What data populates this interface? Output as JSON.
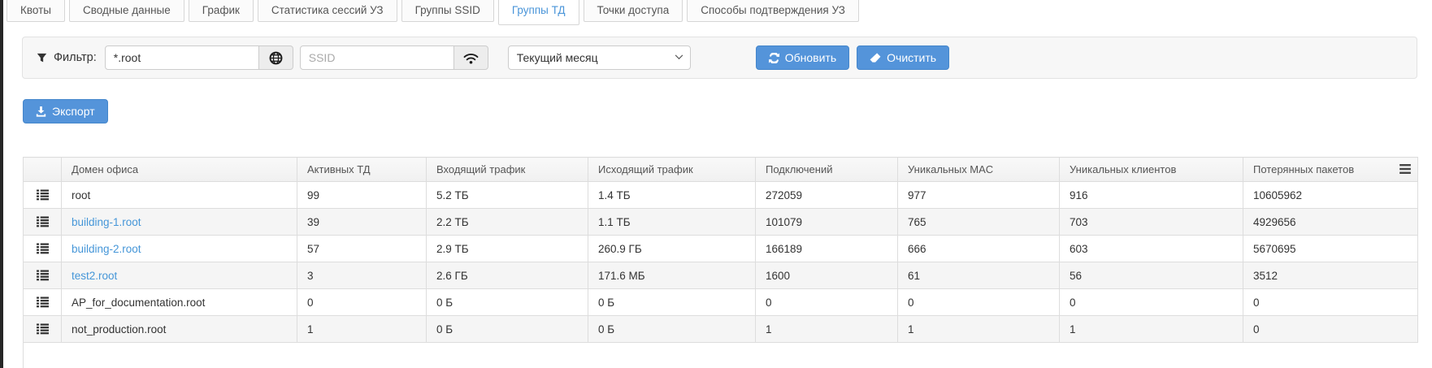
{
  "tabs": [
    {
      "label": "Квоты",
      "active": false
    },
    {
      "label": "Сводные данные",
      "active": false
    },
    {
      "label": "График",
      "active": false
    },
    {
      "label": "Статистика сессий УЗ",
      "active": false
    },
    {
      "label": "Группы SSID",
      "active": false
    },
    {
      "label": "Группы ТД",
      "active": true
    },
    {
      "label": "Точки доступа",
      "active": false
    },
    {
      "label": "Способы подтверждения УЗ",
      "active": false
    }
  ],
  "filter": {
    "label": "Фильтр:",
    "domain_value": "*.root",
    "ssid_placeholder": "SSID",
    "period_value": "Текущий месяц",
    "refresh_label": "Обновить",
    "clear_label": "Очистить"
  },
  "export_label": "Экспорт",
  "table": {
    "columns": [
      "Домен офиса",
      "Активных ТД",
      "Входящий трафик",
      "Исходящий трафик",
      "Подключений",
      "Уникальных MAC",
      "Уникальных клиентов",
      "Потерянных пакетов"
    ],
    "rows": [
      {
        "domain": "root",
        "is_link": false,
        "values": [
          "99",
          "5.2 ТБ",
          "1.4 ТБ",
          "272059",
          "977",
          "916",
          "10605962"
        ]
      },
      {
        "domain": "building-1.root",
        "is_link": true,
        "values": [
          "39",
          "2.2 ТБ",
          "1.1 ТБ",
          "101079",
          "765",
          "703",
          "4929656"
        ]
      },
      {
        "domain": "building-2.root",
        "is_link": true,
        "values": [
          "57",
          "2.9 ТБ",
          "260.9 ГБ",
          "166189",
          "666",
          "603",
          "5670695"
        ]
      },
      {
        "domain": "test2.root",
        "is_link": true,
        "values": [
          "3",
          "2.6 ГБ",
          "171.6 МБ",
          "1600",
          "61",
          "56",
          "3512"
        ]
      },
      {
        "domain": "AP_for_documentation.root",
        "is_link": false,
        "values": [
          "0",
          "0 Б",
          "0 Б",
          "0",
          "0",
          "0",
          "0"
        ]
      },
      {
        "domain": "not_production.root",
        "is_link": false,
        "values": [
          "1",
          "0 Б",
          "0 Б",
          "1",
          "1",
          "1",
          "0"
        ]
      }
    ]
  },
  "colors": {
    "accent": "#4a95d9",
    "button": "#5494da"
  }
}
